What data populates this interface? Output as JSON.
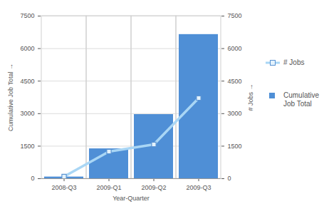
{
  "chart_data": {
    "type": "bar",
    "xlabel": "Year-Quarter",
    "ylabel": "Cumulative Job Total",
    "y2label": "# Jobs",
    "categories": [
      "2008-Q3",
      "2009-Q1",
      "2009-Q2",
      "2009-Q3"
    ],
    "series": [
      {
        "name": "# Jobs",
        "type": "line",
        "axis": "y2",
        "color": "#a9d6f5",
        "marker": "square",
        "values": [
          100,
          1250,
          1580,
          3720
        ]
      },
      {
        "name": "Cumulative Job Total",
        "type": "bar",
        "color": "#4f8fd6",
        "values": [
          80,
          1380,
          2960,
          6650
        ]
      }
    ],
    "ylim": [
      0,
      7500
    ],
    "yticks": [
      0,
      1500,
      3000,
      4500,
      6000,
      7500
    ],
    "y2lim": [
      0,
      7500
    ],
    "y2ticks": [
      0,
      1500,
      3000,
      4500,
      6000,
      7500
    ],
    "grid": true,
    "legend": "right"
  }
}
